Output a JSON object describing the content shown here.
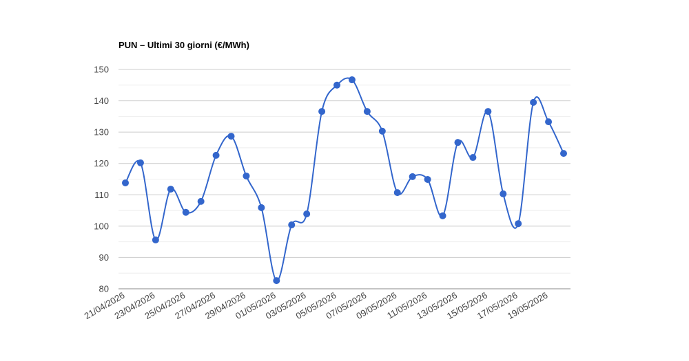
{
  "chart_data": {
    "type": "line",
    "title": "PUN – Ultimi 30 giorni (€/MWh)",
    "categories": [
      "21/04/2026",
      null,
      "23/04/2026",
      null,
      "25/04/2026",
      null,
      "27/04/2026",
      null,
      "29/04/2026",
      null,
      "01/05/2026",
      null,
      "03/05/2026",
      null,
      "05/05/2026",
      null,
      "07/05/2026",
      null,
      "09/05/2026",
      null,
      "11/05/2026",
      null,
      "13/05/2026",
      null,
      "15/05/2026",
      null,
      "17/05/2026",
      null,
      "19/05/2026",
      null
    ],
    "values": [
      113.8,
      120.2,
      95.6,
      111.8,
      104.4,
      107.9,
      122.6,
      128.7,
      116.0,
      105.9,
      82.6,
      100.4,
      103.9,
      136.6,
      145.0,
      146.7,
      136.6,
      130.3,
      110.7,
      115.8,
      114.9,
      103.3,
      126.7,
      121.9,
      136.6,
      110.3,
      100.8,
      139.5,
      133.3,
      123.2
    ],
    "color": "#3366cc",
    "ylim": [
      80,
      150
    ],
    "yticks": [
      80,
      90,
      100,
      110,
      120,
      130,
      140,
      150
    ],
    "grid": true,
    "smooth": true
  }
}
